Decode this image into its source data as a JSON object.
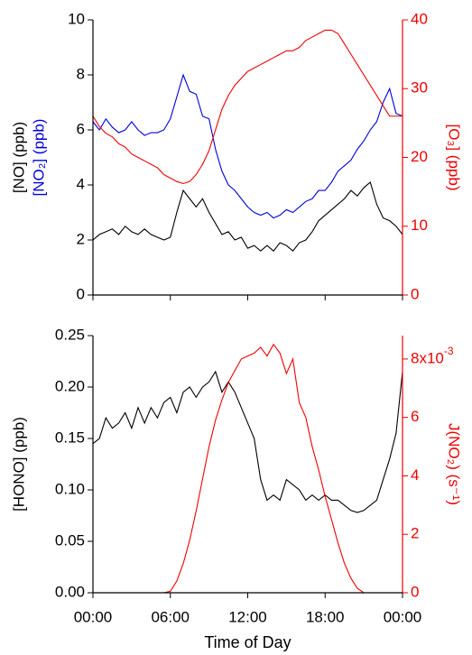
{
  "chart_data": [
    {
      "type": "line",
      "ylabel": [
        {
          "text": "[NO] (ppb)",
          "color": "#000000"
        },
        {
          "text": "[NO₂] (ppb)",
          "color": "#0000dd"
        }
      ],
      "y2label": "[O₃] (ppb)",
      "y2_color": "#ee0000",
      "x": [
        0,
        0.5,
        1,
        1.5,
        2,
        2.5,
        3,
        3.5,
        4,
        4.5,
        5,
        5.5,
        6,
        6.5,
        7,
        7.5,
        8,
        8.5,
        9,
        9.5,
        10,
        10.5,
        11,
        11.5,
        12,
        12.5,
        13,
        13.5,
        14,
        14.5,
        15,
        15.5,
        16,
        16.5,
        17,
        17.5,
        18,
        18.5,
        19,
        19.5,
        20,
        20.5,
        21,
        21.5,
        22,
        22.5,
        23,
        23.5,
        24
      ],
      "xlim": [
        0,
        24
      ],
      "xticks": [
        0,
        6,
        12,
        18,
        24
      ],
      "ylim": [
        0,
        10
      ],
      "yticks": [
        0,
        2,
        4,
        6,
        8,
        10
      ],
      "y2lim": [
        0,
        40
      ],
      "y2ticks": [
        0,
        10,
        20,
        30,
        40
      ],
      "series": [
        {
          "name": "NO",
          "color": "#000000",
          "values": [
            2.0,
            2.2,
            2.3,
            2.4,
            2.2,
            2.5,
            2.3,
            2.2,
            2.4,
            2.2,
            2.1,
            2.0,
            2.1,
            3.0,
            3.8,
            3.5,
            3.2,
            3.5,
            3.0,
            2.6,
            2.2,
            2.3,
            2.0,
            2.1,
            1.7,
            1.8,
            1.6,
            1.8,
            1.6,
            1.9,
            1.8,
            1.6,
            1.9,
            2.0,
            2.3,
            2.7,
            2.9,
            3.1,
            3.3,
            3.5,
            3.8,
            3.6,
            3.9,
            4.1,
            3.3,
            2.8,
            2.7,
            2.5,
            2.2
          ]
        },
        {
          "name": "NO2",
          "color": "#0000dd",
          "values": [
            6.3,
            6.0,
            6.4,
            6.1,
            5.9,
            6.0,
            6.3,
            6.0,
            5.8,
            5.9,
            5.9,
            6.0,
            6.4,
            7.2,
            8.0,
            7.4,
            7.3,
            6.5,
            6.4,
            5.3,
            4.5,
            4.0,
            3.8,
            3.5,
            3.2,
            3.0,
            2.9,
            3.0,
            2.8,
            2.9,
            3.1,
            3.0,
            3.2,
            3.4,
            3.5,
            3.8,
            3.8,
            4.1,
            4.5,
            4.7,
            4.9,
            5.3,
            5.6,
            6.0,
            6.3,
            7.0,
            7.5,
            6.6,
            6.5
          ]
        },
        {
          "name": "O3",
          "color": "#ee0000",
          "axis": "y2",
          "values": [
            26,
            24.5,
            23.5,
            23,
            22,
            21.5,
            20.5,
            20,
            19.5,
            19,
            18.5,
            17.5,
            17,
            16.5,
            16.2,
            16.5,
            17.5,
            19,
            21,
            24,
            27,
            29,
            30.5,
            31.5,
            32.5,
            33,
            33.5,
            34,
            34.5,
            35,
            35.5,
            35.5,
            36,
            37,
            37.5,
            38,
            38.5,
            38.5,
            38,
            36.5,
            35,
            33.5,
            32,
            30.5,
            29,
            27.5,
            26,
            26,
            26
          ]
        }
      ]
    },
    {
      "type": "line",
      "ylabel": [
        {
          "text": "[HONO] (ppb)",
          "color": "#000000"
        }
      ],
      "y2label": "J(NO₂) (s⁻¹)",
      "y2_color": "#ee0000",
      "y2_multiplier": "x10",
      "y2_multiplier_exponent": "-3",
      "xlabel": "Time of Day",
      "x": [
        0,
        0.5,
        1,
        1.5,
        2,
        2.5,
        3,
        3.5,
        4,
        4.5,
        5,
        5.5,
        6,
        6.5,
        7,
        7.5,
        8,
        8.5,
        9,
        9.5,
        10,
        10.5,
        11,
        11.5,
        12,
        12.5,
        13,
        13.5,
        14,
        14.5,
        15,
        15.5,
        16,
        16.5,
        17,
        17.5,
        18,
        18.5,
        19,
        19.5,
        20,
        20.5,
        21,
        21.5,
        22,
        22.5,
        23,
        23.5,
        24
      ],
      "xlim": [
        0,
        24
      ],
      "xticks": [
        {
          "value": 0,
          "label": "00:00"
        },
        {
          "value": 6,
          "label": "06:00"
        },
        {
          "value": 12,
          "label": "12:00"
        },
        {
          "value": 18,
          "label": "18:00"
        },
        {
          "value": 24,
          "label": "00:00"
        }
      ],
      "ylim": [
        0,
        0.25
      ],
      "yticks": [
        {
          "value": 0,
          "label": "0.00"
        },
        {
          "value": 0.05,
          "label": "0.05"
        },
        {
          "value": 0.1,
          "label": "0.10"
        },
        {
          "value": 0.15,
          "label": "0.15"
        },
        {
          "value": 0.2,
          "label": "0.20"
        },
        {
          "value": 0.25,
          "label": "0.25"
        }
      ],
      "y2lim": [
        0,
        8.8
      ],
      "y2ticks": [
        0,
        2,
        4,
        6,
        8
      ],
      "series": [
        {
          "name": "HONO",
          "color": "#000000",
          "values": [
            0.145,
            0.15,
            0.17,
            0.16,
            0.165,
            0.175,
            0.16,
            0.18,
            0.165,
            0.18,
            0.17,
            0.185,
            0.19,
            0.175,
            0.195,
            0.2,
            0.19,
            0.2,
            0.205,
            0.215,
            0.195,
            0.205,
            0.195,
            0.18,
            0.165,
            0.15,
            0.11,
            0.09,
            0.095,
            0.09,
            0.11,
            0.105,
            0.1,
            0.09,
            0.095,
            0.09,
            0.095,
            0.09,
            0.09,
            0.085,
            0.08,
            0.078,
            0.08,
            0.085,
            0.09,
            0.11,
            0.13,
            0.155,
            0.215
          ]
        },
        {
          "name": "J(NO2)",
          "color": "#ee0000",
          "axis": "y2",
          "values": [
            0,
            0,
            0,
            0,
            0,
            0,
            0,
            0,
            0,
            0,
            0,
            0,
            0.05,
            0.4,
            1.0,
            1.8,
            2.8,
            3.9,
            5.0,
            5.9,
            6.6,
            7.2,
            7.6,
            8.0,
            8.1,
            8.2,
            8.4,
            8.1,
            8.5,
            8.2,
            7.5,
            8.0,
            6.5,
            6.0,
            5.0,
            4.2,
            3.3,
            2.5,
            1.7,
            1.0,
            0.5,
            0.15,
            0,
            0,
            0,
            0,
            0,
            0,
            0
          ]
        }
      ]
    }
  ]
}
